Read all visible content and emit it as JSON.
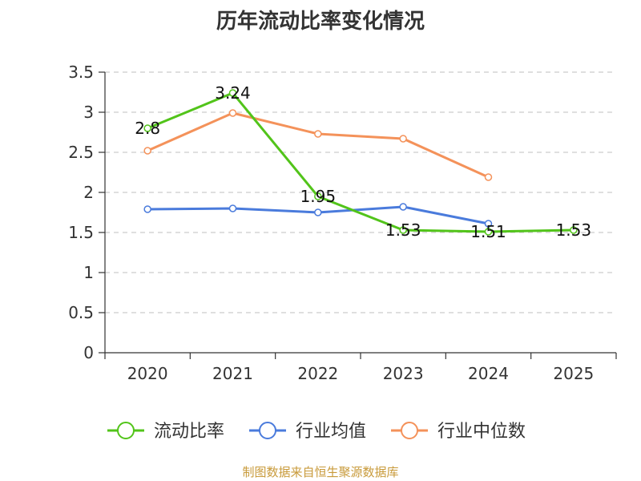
{
  "source_text": "制图数据来自恒生聚源数据库",
  "chart_data": {
    "type": "line",
    "title": "历年流动比率变化情况",
    "categories": [
      "2020",
      "2021",
      "2022",
      "2023",
      "2024",
      "2025"
    ],
    "ylim": [
      0,
      3.5
    ],
    "yticks": [
      "0",
      "0.5",
      "1",
      "1.5",
      "2",
      "2.5",
      "3",
      "3.5"
    ],
    "grid": true,
    "legend_position": "bottom",
    "series": [
      {
        "name": "流动比率",
        "color": "#52c41a",
        "values": [
          2.8,
          3.24,
          1.95,
          1.53,
          1.51,
          1.53
        ],
        "labels": [
          "2.8",
          "3.24",
          "1.95",
          "1.53",
          "1.51",
          "1.53"
        ],
        "show_labels": true
      },
      {
        "name": "行业均值",
        "color": "#4a7bdc",
        "values": [
          1.79,
          1.8,
          1.75,
          1.82,
          1.61,
          null
        ],
        "show_labels": false
      },
      {
        "name": "行业中位数",
        "color": "#f4925a",
        "values": [
          2.52,
          2.99,
          2.73,
          2.67,
          2.19,
          null
        ],
        "show_labels": false
      }
    ]
  }
}
